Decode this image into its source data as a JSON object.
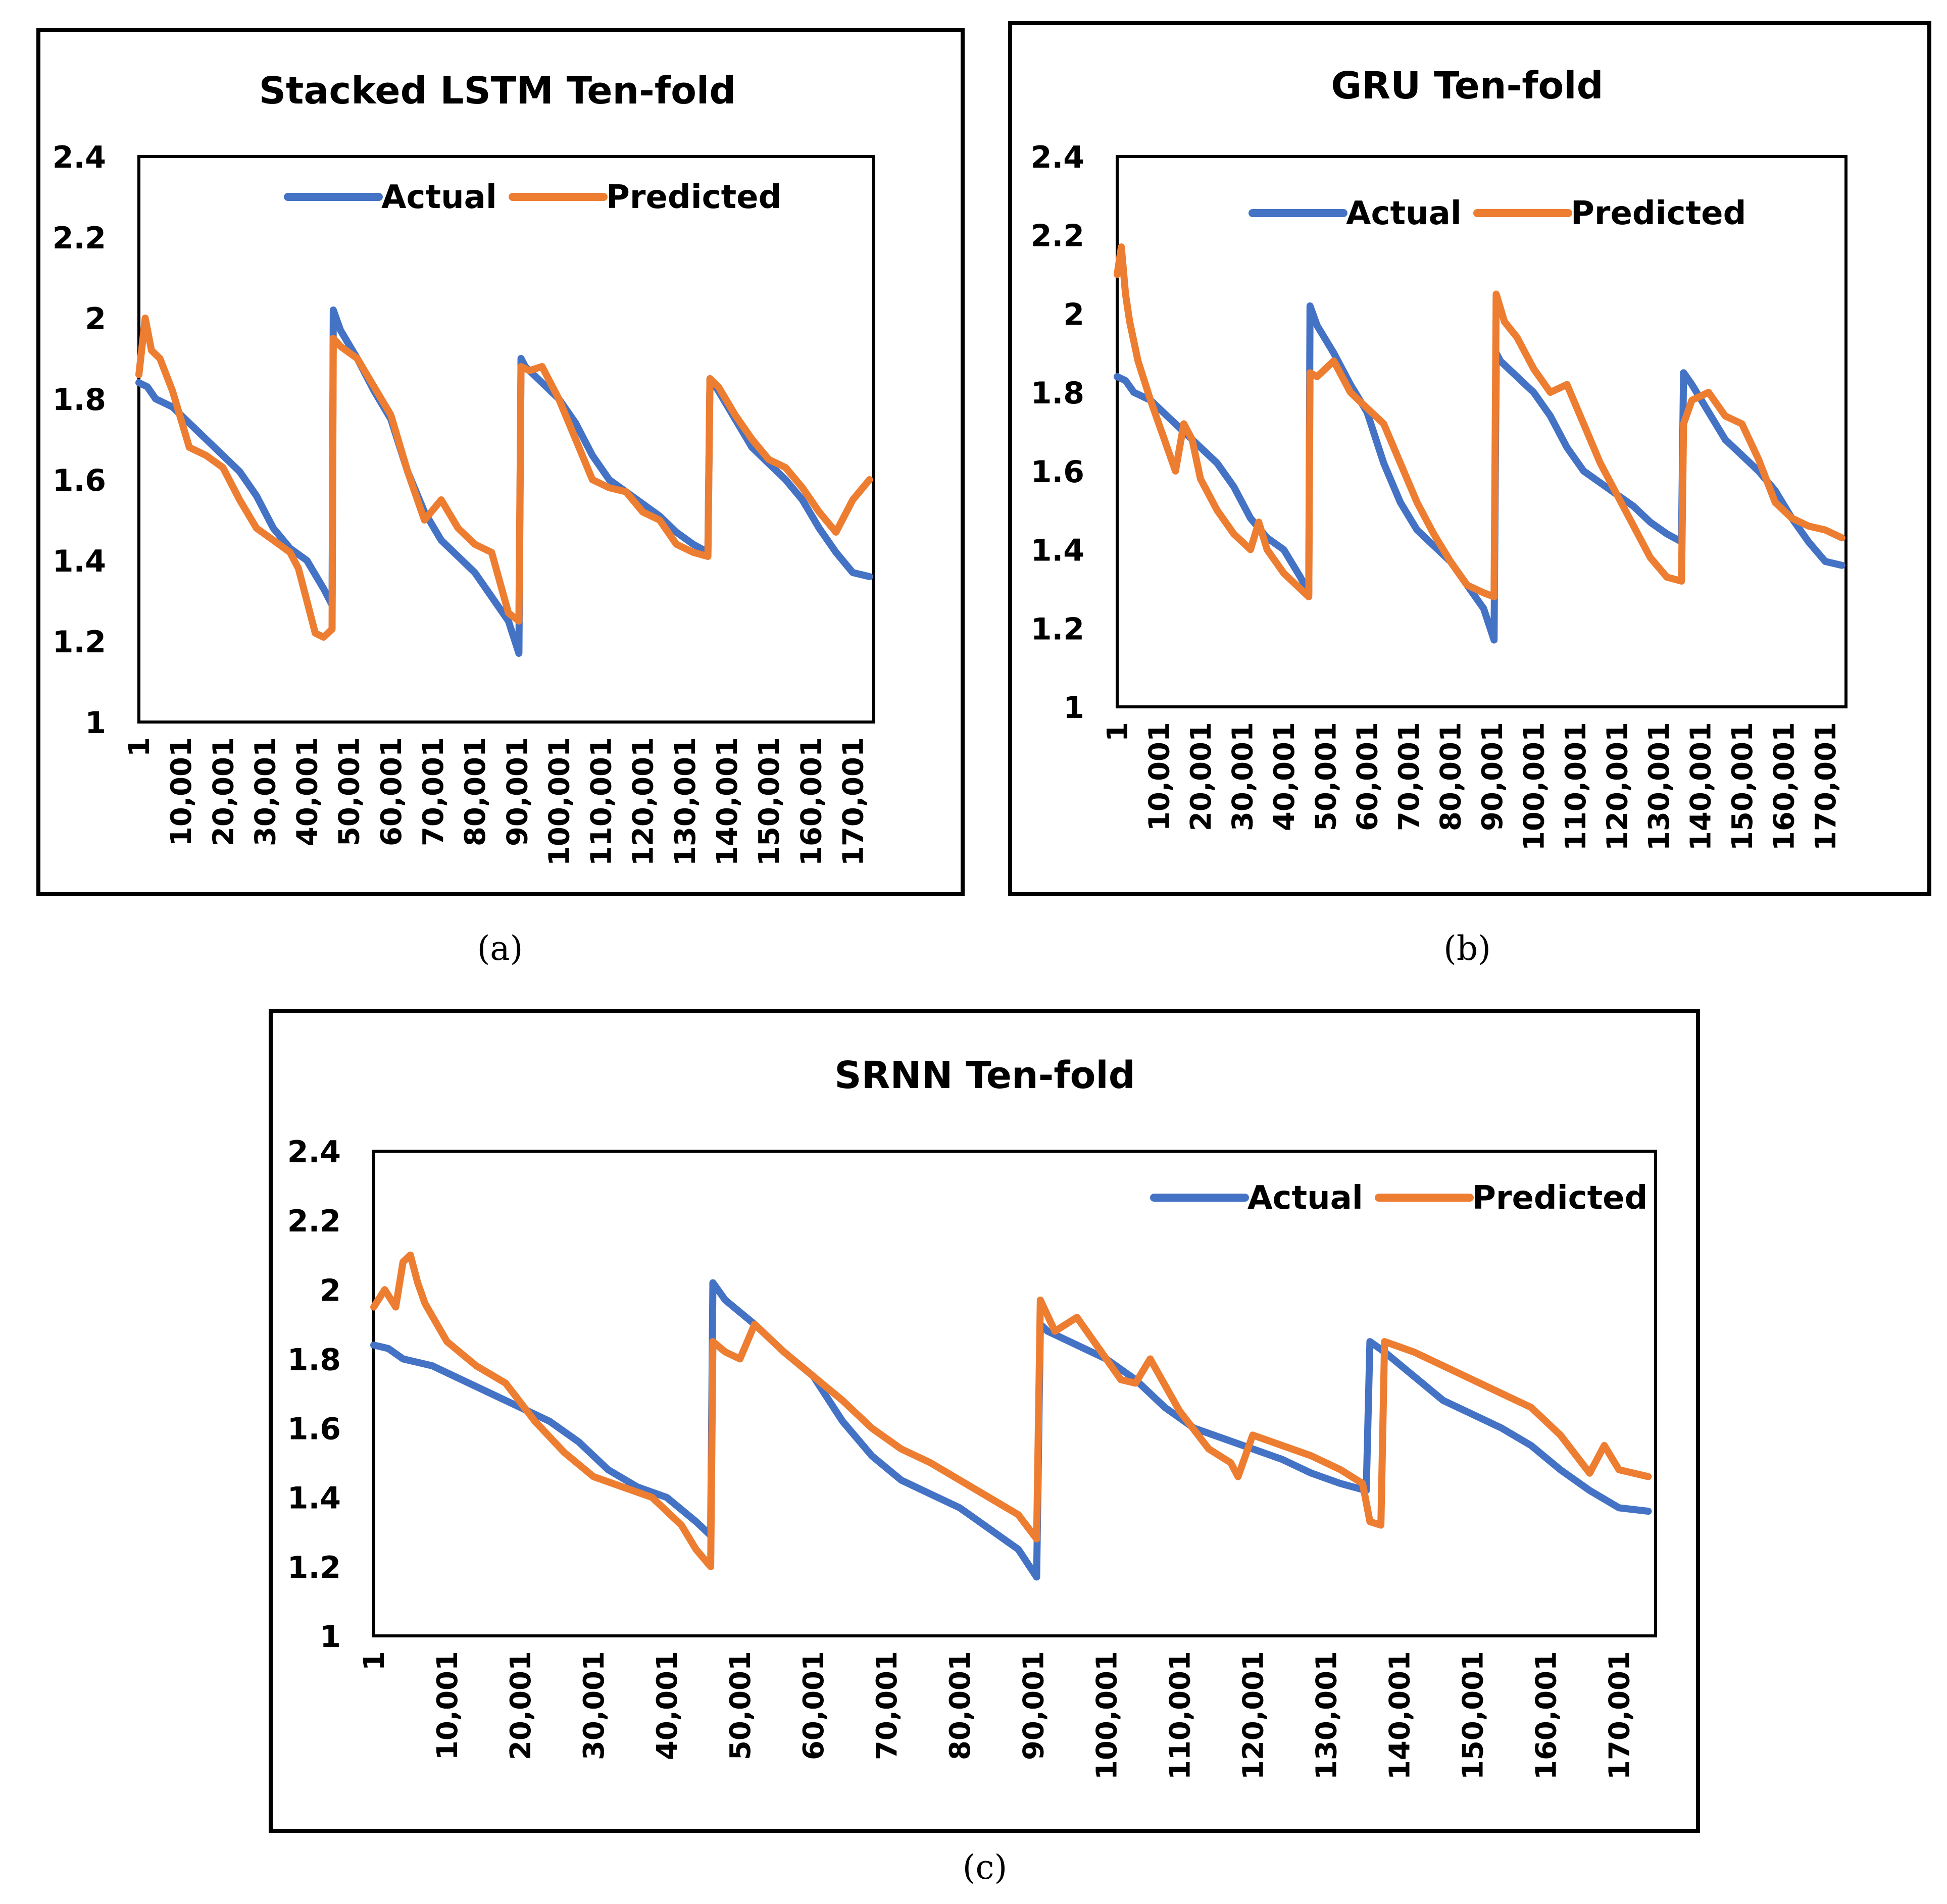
{
  "figure": {
    "captions": [
      "(a)",
      "(b)",
      "(c)"
    ]
  },
  "colors": {
    "actual": "#4472C4",
    "predicted": "#ED7D31",
    "axis": "#000000"
  },
  "chart_data": [
    {
      "id": "a",
      "type": "line",
      "title": "Stacked LSTM Ten-fold",
      "xlabel": "",
      "ylabel": "",
      "ylim": [
        1,
        2.4
      ],
      "yticks": [
        "1",
        "1.2",
        "1.4",
        "1.6",
        "1.8",
        "2",
        "2.2",
        "2.4"
      ],
      "xlim": [
        1,
        175000
      ],
      "xticks": [
        "1",
        "10,001",
        "20,001",
        "30,001",
        "40,001",
        "50,001",
        "60,001",
        "70,001",
        "80,001",
        "90,001",
        "100,001",
        "110,001",
        "120,001",
        "130,001",
        "140,001",
        "150,001",
        "160,001",
        "170,001"
      ],
      "legend": {
        "position": "top-left",
        "entries": [
          "Actual",
          "Predicted"
        ]
      },
      "series": [
        {
          "name": "Actual",
          "color": "#4472C4",
          "x": [
            1,
            2000,
            4000,
            8000,
            12000,
            16000,
            20000,
            24000,
            28000,
            32000,
            36000,
            40000,
            44000,
            46000,
            46300,
            48000,
            52000,
            56000,
            60000,
            64000,
            68000,
            72000,
            76000,
            80000,
            84000,
            88000,
            90500,
            91000,
            92000,
            96000,
            100000,
            104000,
            108000,
            112000,
            116000,
            120000,
            124000,
            128000,
            132000,
            135500,
            136000,
            138000,
            142000,
            146000,
            150000,
            154000,
            158000,
            162000,
            166000,
            170000,
            174000
          ],
          "y": [
            1.84,
            1.83,
            1.8,
            1.78,
            1.74,
            1.7,
            1.66,
            1.62,
            1.56,
            1.48,
            1.43,
            1.4,
            1.33,
            1.29,
            2.02,
            1.97,
            1.9,
            1.82,
            1.75,
            1.62,
            1.52,
            1.45,
            1.41,
            1.37,
            1.31,
            1.25,
            1.17,
            1.9,
            1.88,
            1.84,
            1.8,
            1.74,
            1.66,
            1.6,
            1.57,
            1.54,
            1.51,
            1.47,
            1.44,
            1.42,
            1.85,
            1.82,
            1.75,
            1.68,
            1.64,
            1.6,
            1.55,
            1.48,
            1.42,
            1.37,
            1.36
          ]
        },
        {
          "name": "Predicted",
          "color": "#ED7D31",
          "x": [
            1,
            1500,
            3000,
            5000,
            8000,
            12000,
            16000,
            20000,
            24000,
            28000,
            32000,
            36000,
            38000,
            40000,
            42000,
            44000,
            46000,
            46300,
            48000,
            52000,
            56000,
            60000,
            64000,
            68000,
            72000,
            76000,
            80000,
            84000,
            88000,
            90500,
            91000,
            93000,
            96000,
            100000,
            104000,
            108000,
            112000,
            116000,
            120000,
            124000,
            128000,
            132000,
            135500,
            136000,
            138000,
            142000,
            146000,
            150000,
            154000,
            158000,
            162000,
            166000,
            170000,
            174000
          ],
          "y": [
            1.86,
            2.0,
            1.92,
            1.9,
            1.82,
            1.68,
            1.66,
            1.63,
            1.55,
            1.48,
            1.45,
            1.42,
            1.38,
            1.3,
            1.22,
            1.21,
            1.23,
            1.95,
            1.93,
            1.9,
            1.83,
            1.76,
            1.62,
            1.5,
            1.55,
            1.48,
            1.44,
            1.42,
            1.27,
            1.25,
            1.88,
            1.87,
            1.88,
            1.8,
            1.7,
            1.6,
            1.58,
            1.57,
            1.52,
            1.5,
            1.44,
            1.42,
            1.41,
            1.85,
            1.83,
            1.76,
            1.7,
            1.65,
            1.63,
            1.58,
            1.52,
            1.47,
            1.55,
            1.6
          ]
        }
      ]
    },
    {
      "id": "b",
      "type": "line",
      "title": "GRU Ten-fold",
      "xlabel": "",
      "ylabel": "",
      "ylim": [
        1,
        2.4
      ],
      "yticks": [
        "1",
        "1.2",
        "1.4",
        "1.6",
        "1.8",
        "2",
        "2.2",
        "2.4"
      ],
      "xlim": [
        1,
        175000
      ],
      "xticks": [
        "1",
        "10,001",
        "20,001",
        "30,001",
        "40,001",
        "50,001",
        "60,001",
        "70,001",
        "80,001",
        "90,001",
        "100,001",
        "110,001",
        "120,001",
        "130,001",
        "140,001",
        "150,001",
        "160,001",
        "170,001"
      ],
      "legend": {
        "position": "top-center",
        "entries": [
          "Actual",
          "Predicted"
        ]
      },
      "series": [
        {
          "name": "Actual",
          "color": "#4472C4",
          "x": [
            1,
            2000,
            4000,
            8000,
            12000,
            16000,
            20000,
            24000,
            28000,
            32000,
            36000,
            40000,
            44000,
            46000,
            46300,
            48000,
            52000,
            56000,
            60000,
            64000,
            68000,
            72000,
            76000,
            80000,
            84000,
            88000,
            90500,
            91000,
            92000,
            96000,
            100000,
            104000,
            108000,
            112000,
            116000,
            120000,
            124000,
            128000,
            132000,
            135500,
            136000,
            138000,
            142000,
            146000,
            150000,
            154000,
            158000,
            162000,
            166000,
            170000,
            174000
          ],
          "y": [
            1.84,
            1.83,
            1.8,
            1.78,
            1.74,
            1.7,
            1.66,
            1.62,
            1.56,
            1.48,
            1.43,
            1.4,
            1.33,
            1.29,
            2.02,
            1.97,
            1.9,
            1.82,
            1.75,
            1.62,
            1.52,
            1.45,
            1.41,
            1.37,
            1.31,
            1.25,
            1.17,
            1.9,
            1.88,
            1.84,
            1.8,
            1.74,
            1.66,
            1.6,
            1.57,
            1.54,
            1.51,
            1.47,
            1.44,
            1.42,
            1.85,
            1.82,
            1.75,
            1.68,
            1.64,
            1.6,
            1.55,
            1.48,
            1.42,
            1.37,
            1.36
          ]
        },
        {
          "name": "Predicted",
          "color": "#ED7D31",
          "x": [
            1,
            1000,
            2000,
            3000,
            5000,
            8000,
            12000,
            14000,
            16000,
            18000,
            20000,
            24000,
            28000,
            32000,
            34000,
            36000,
            40000,
            44000,
            46000,
            46300,
            48000,
            52000,
            56000,
            60000,
            64000,
            68000,
            72000,
            76000,
            80000,
            84000,
            88000,
            90500,
            91000,
            93000,
            96000,
            100000,
            104000,
            108000,
            112000,
            116000,
            120000,
            124000,
            128000,
            132000,
            135500,
            136000,
            138000,
            142000,
            146000,
            150000,
            154000,
            158000,
            162000,
            166000,
            170000,
            174000
          ],
          "y": [
            2.1,
            2.17,
            2.05,
            1.98,
            1.88,
            1.78,
            1.66,
            1.6,
            1.72,
            1.68,
            1.58,
            1.5,
            1.44,
            1.4,
            1.47,
            1.4,
            1.34,
            1.3,
            1.28,
            1.85,
            1.84,
            1.88,
            1.8,
            1.76,
            1.72,
            1.62,
            1.52,
            1.44,
            1.37,
            1.31,
            1.29,
            1.28,
            2.05,
            1.98,
            1.94,
            1.86,
            1.8,
            1.82,
            1.72,
            1.62,
            1.54,
            1.46,
            1.38,
            1.33,
            1.32,
            1.72,
            1.78,
            1.8,
            1.74,
            1.72,
            1.63,
            1.52,
            1.48,
            1.46,
            1.45,
            1.43
          ]
        }
      ]
    },
    {
      "id": "c",
      "type": "line",
      "title": "SRNN Ten-fold",
      "xlabel": "",
      "ylabel": "",
      "ylim": [
        1,
        2.4
      ],
      "yticks": [
        "1",
        "1.2",
        "1.4",
        "1.6",
        "1.8",
        "2",
        "2.2",
        "2.4"
      ],
      "xlim": [
        1,
        175000
      ],
      "xticks": [
        "1",
        "10,001",
        "20,001",
        "30,001",
        "40,001",
        "50,001",
        "60,001",
        "70,001",
        "80,001",
        "90,001",
        "100,001",
        "110,001",
        "120,001",
        "130,001",
        "140,001",
        "150,001",
        "160,001",
        "170,001"
      ],
      "legend": {
        "position": "top-right",
        "entries": [
          "Actual",
          "Predicted"
        ]
      },
      "series": [
        {
          "name": "Actual",
          "color": "#4472C4",
          "x": [
            1,
            2000,
            4000,
            8000,
            12000,
            16000,
            20000,
            24000,
            28000,
            32000,
            36000,
            40000,
            44000,
            46000,
            46300,
            48000,
            52000,
            56000,
            60000,
            64000,
            68000,
            72000,
            76000,
            80000,
            84000,
            88000,
            90500,
            91000,
            92000,
            96000,
            100000,
            104000,
            108000,
            112000,
            116000,
            120000,
            124000,
            128000,
            132000,
            135500,
            136000,
            138000,
            142000,
            146000,
            150000,
            154000,
            158000,
            162000,
            166000,
            170000,
            174000
          ],
          "y": [
            1.84,
            1.83,
            1.8,
            1.78,
            1.74,
            1.7,
            1.66,
            1.62,
            1.56,
            1.48,
            1.43,
            1.4,
            1.33,
            1.29,
            2.02,
            1.97,
            1.9,
            1.82,
            1.75,
            1.62,
            1.52,
            1.45,
            1.41,
            1.37,
            1.31,
            1.25,
            1.17,
            1.9,
            1.88,
            1.84,
            1.8,
            1.74,
            1.66,
            1.6,
            1.57,
            1.54,
            1.51,
            1.47,
            1.44,
            1.42,
            1.85,
            1.82,
            1.75,
            1.68,
            1.64,
            1.6,
            1.55,
            1.48,
            1.42,
            1.37,
            1.36
          ]
        },
        {
          "name": "Predicted",
          "color": "#ED7D31",
          "x": [
            1,
            1500,
            3000,
            4000,
            5000,
            6000,
            7000,
            10000,
            14000,
            18000,
            22000,
            26000,
            30000,
            34000,
            38000,
            42000,
            44000,
            46000,
            46300,
            48000,
            50000,
            52000,
            56000,
            60000,
            64000,
            68000,
            72000,
            76000,
            80000,
            84000,
            88000,
            90500,
            91000,
            93000,
            96000,
            100000,
            102000,
            104000,
            106000,
            110000,
            114000,
            117000,
            118000,
            120000,
            124000,
            128000,
            132000,
            135000,
            136000,
            137500,
            138000,
            142000,
            146000,
            150000,
            154000,
            158000,
            162000,
            166000,
            168000,
            170000,
            174000
          ],
          "y": [
            1.95,
            2.0,
            1.95,
            2.08,
            2.1,
            2.02,
            1.96,
            1.85,
            1.78,
            1.73,
            1.62,
            1.53,
            1.46,
            1.43,
            1.4,
            1.32,
            1.25,
            1.2,
            1.85,
            1.82,
            1.8,
            1.9,
            1.82,
            1.75,
            1.68,
            1.6,
            1.54,
            1.5,
            1.45,
            1.4,
            1.35,
            1.28,
            1.97,
            1.88,
            1.92,
            1.8,
            1.74,
            1.73,
            1.8,
            1.65,
            1.54,
            1.5,
            1.46,
            1.58,
            1.55,
            1.52,
            1.48,
            1.44,
            1.33,
            1.32,
            1.85,
            1.82,
            1.78,
            1.74,
            1.7,
            1.66,
            1.58,
            1.47,
            1.55,
            1.48,
            1.46
          ]
        }
      ]
    }
  ]
}
